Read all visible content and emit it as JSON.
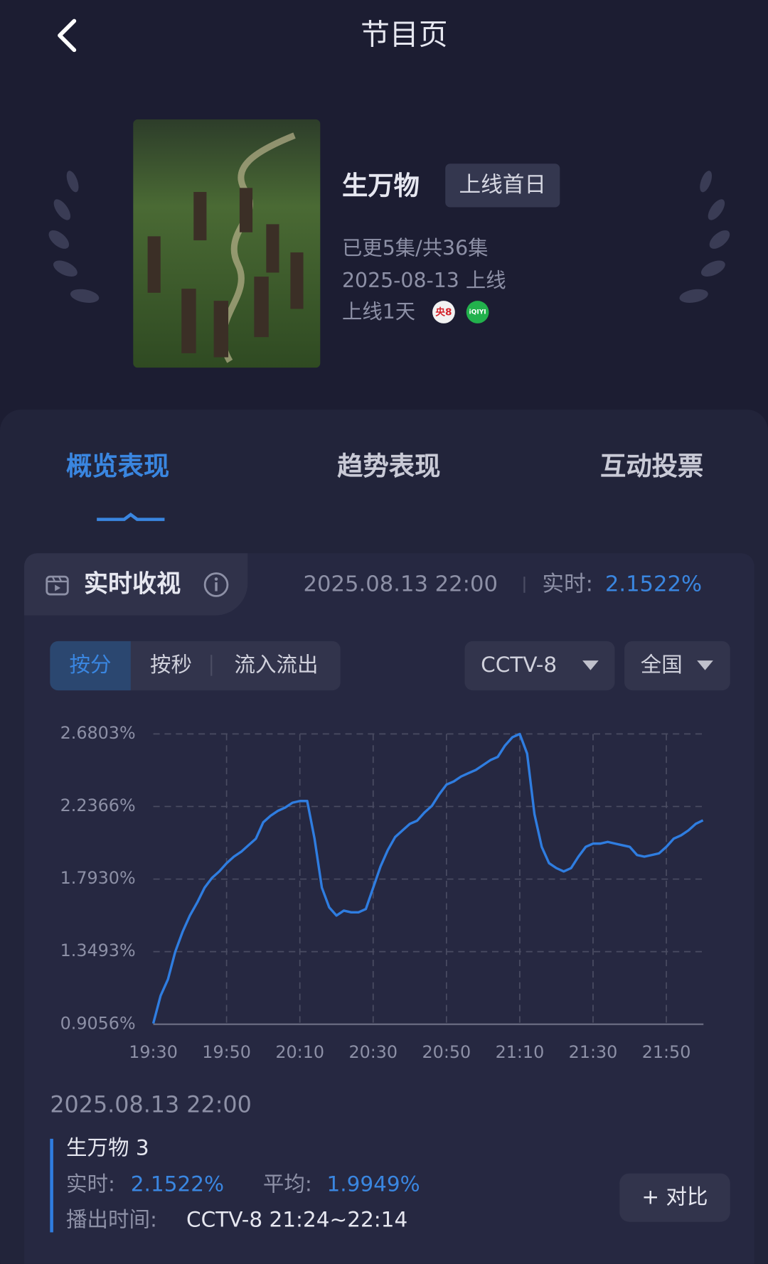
{
  "header": {
    "title": "节目页"
  },
  "show": {
    "name": "生万物",
    "badge": "上线首日",
    "episodes": "已更5集/共36集",
    "release": "2025-08-13 上线",
    "days_online": "上线1天",
    "channels": [
      "央8",
      "iQIYI"
    ]
  },
  "tabs": [
    "概览表现",
    "趋势表现",
    "互动投票"
  ],
  "realtime": {
    "title": "实时收视",
    "timestamp": "2025.08.13 22:00",
    "label": "实时:",
    "value": "2.1522%"
  },
  "filters": {
    "modes": [
      "按分",
      "按秒",
      "流入流出"
    ],
    "channel": "CCTV-8",
    "region": "全国"
  },
  "chart_data": {
    "type": "line",
    "color": "#2f7de0",
    "grid": true,
    "x": [
      "19:30",
      "19:32",
      "19:34",
      "19:36",
      "19:38",
      "19:40",
      "19:42",
      "19:44",
      "19:46",
      "19:48",
      "19:50",
      "19:52",
      "19:54",
      "19:56",
      "19:58",
      "20:00",
      "20:02",
      "20:04",
      "20:06",
      "20:08",
      "20:10",
      "20:12",
      "20:14",
      "20:16",
      "20:18",
      "20:20",
      "20:22",
      "20:24",
      "20:26",
      "20:28",
      "20:30",
      "20:32",
      "20:34",
      "20:36",
      "20:38",
      "20:40",
      "20:42",
      "20:44",
      "20:46",
      "20:48",
      "20:50",
      "20:52",
      "20:54",
      "20:56",
      "20:58",
      "21:00",
      "21:02",
      "21:04",
      "21:06",
      "21:08",
      "21:10",
      "21:12",
      "21:14",
      "21:16",
      "21:18",
      "21:20",
      "21:22",
      "21:24",
      "21:26",
      "21:28",
      "21:30",
      "21:32",
      "21:34",
      "21:36",
      "21:38",
      "21:40",
      "21:42",
      "21:44",
      "21:46",
      "21:48",
      "21:50",
      "21:52",
      "21:54",
      "21:56",
      "21:58",
      "22:00"
    ],
    "values": [
      0.91,
      1.08,
      1.18,
      1.35,
      1.47,
      1.57,
      1.65,
      1.74,
      1.8,
      1.84,
      1.89,
      1.93,
      1.96,
      2.0,
      2.04,
      2.14,
      2.18,
      2.21,
      2.23,
      2.26,
      2.27,
      2.27,
      2.04,
      1.74,
      1.62,
      1.57,
      1.6,
      1.59,
      1.59,
      1.61,
      1.74,
      1.87,
      1.97,
      2.05,
      2.09,
      2.13,
      2.15,
      2.2,
      2.24,
      2.31,
      2.37,
      2.39,
      2.42,
      2.44,
      2.46,
      2.49,
      2.52,
      2.54,
      2.61,
      2.66,
      2.68,
      2.56,
      2.19,
      1.99,
      1.89,
      1.86,
      1.84,
      1.86,
      1.93,
      1.99,
      2.01,
      2.01,
      2.02,
      2.01,
      2.0,
      1.99,
      1.94,
      1.93,
      1.94,
      1.95,
      1.99,
      2.04,
      2.06,
      2.09,
      2.13,
      2.1522
    ],
    "ylim": [
      0.9056,
      2.6803
    ],
    "yticks": [
      {
        "value": 0.9056,
        "label": "0.9056%"
      },
      {
        "value": 1.3493,
        "label": "1.3493%"
      },
      {
        "value": 1.793,
        "label": "1.7930%"
      },
      {
        "value": 2.2366,
        "label": "2.2366%"
      },
      {
        "value": 2.6803,
        "label": "2.6803%"
      }
    ],
    "xticks": [
      "19:30",
      "19:50",
      "20:10",
      "20:30",
      "20:50",
      "21:10",
      "21:30",
      "21:50"
    ]
  },
  "detail": {
    "timestamp": "2025.08.13 22:00",
    "episode": "生万物 3",
    "realtime_label": "实时:",
    "realtime_value": "2.1522%",
    "average_label": "平均:",
    "average_value": "1.9949%",
    "broadcast_label": "播出时间:",
    "broadcast_value": "CCTV-8 21:24~22:14",
    "compare_button": "+ 对比"
  }
}
